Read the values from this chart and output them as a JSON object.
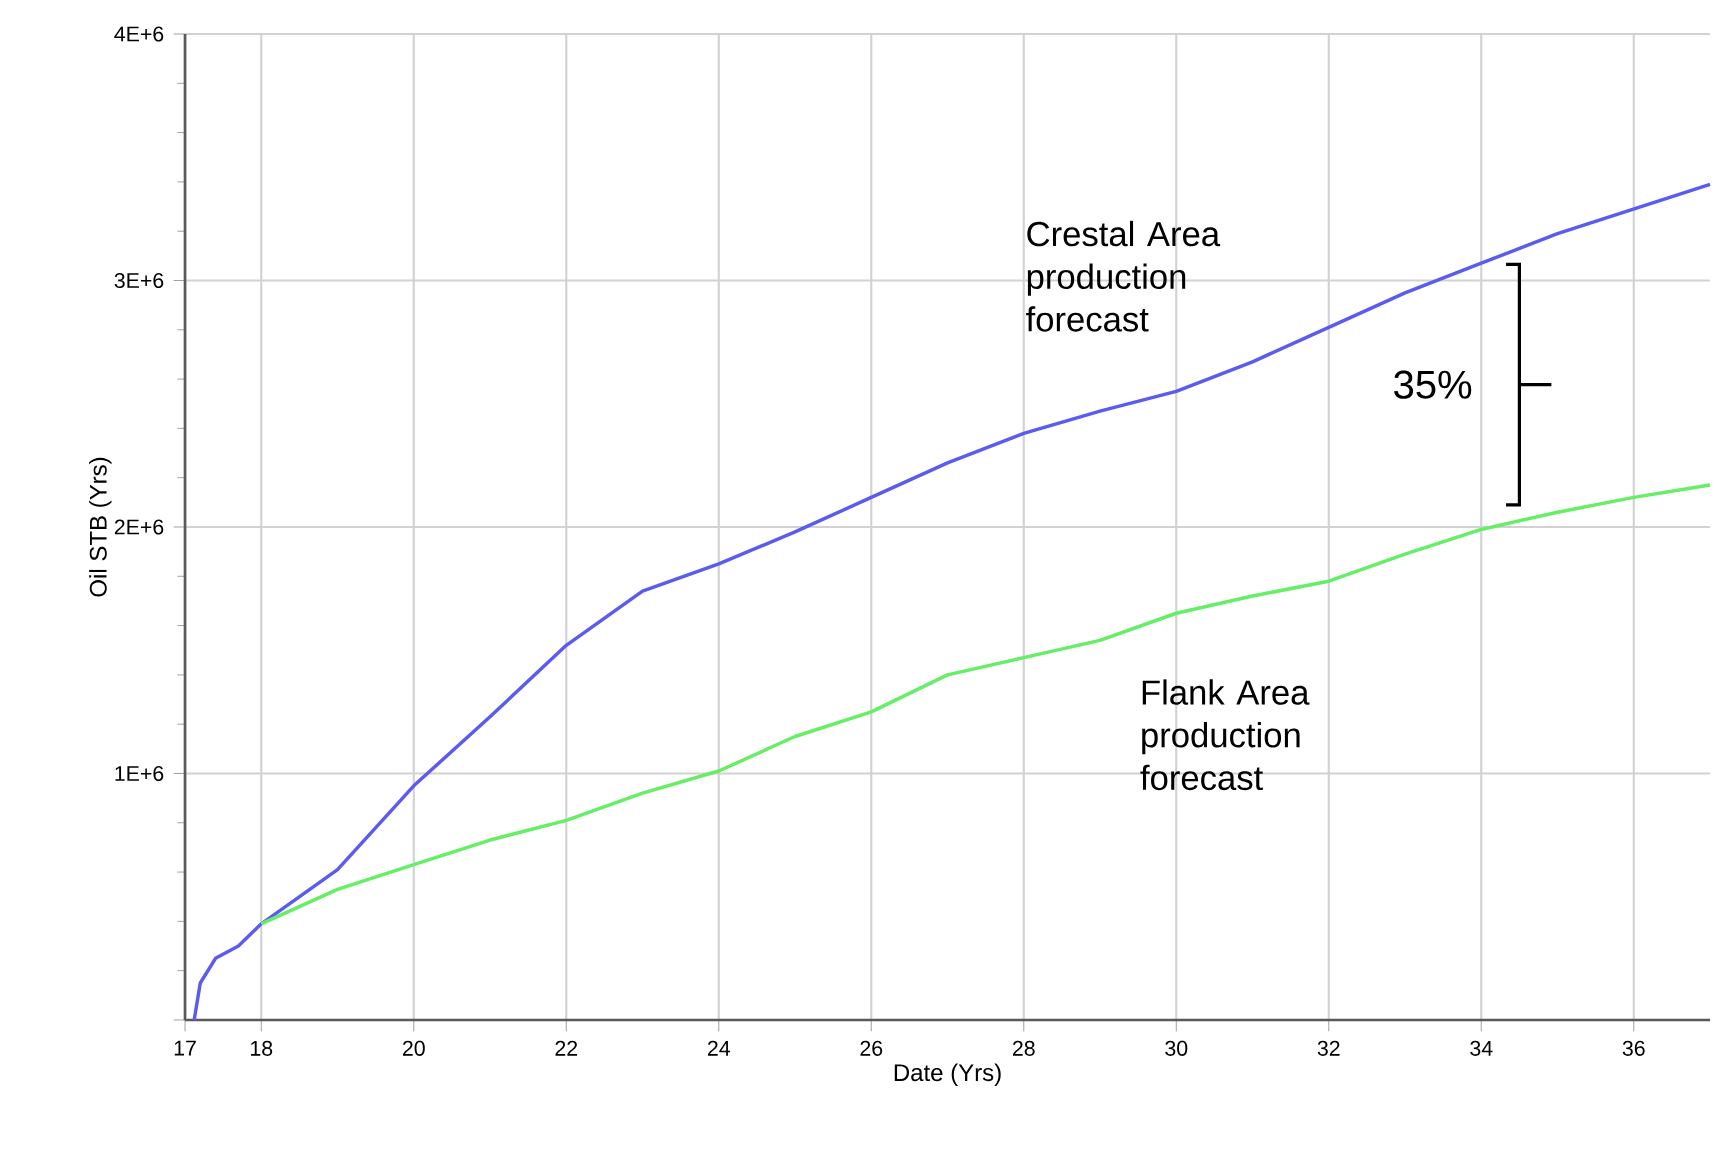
{
  "chart_data": {
    "type": "line",
    "xlabel": "Date (Yrs)",
    "ylabel": "Oil STB (Yrs)",
    "xlim": [
      17,
      37
    ],
    "ylim": [
      0,
      4000000
    ],
    "xticks": [
      17,
      18,
      20,
      22,
      24,
      26,
      28,
      30,
      32,
      34,
      36
    ],
    "yticks": [
      {
        "value": 0,
        "label": null
      },
      {
        "value": 1000000,
        "label": "1E+6"
      },
      {
        "value": 2000000,
        "label": "2E+6"
      },
      {
        "value": 3000000,
        "label": "3E+6"
      },
      {
        "value": 4000000,
        "label": "4E+6"
      }
    ],
    "grid": true,
    "marker": "none",
    "line_style": "solid",
    "series": [
      {
        "color": "#5b5bf0",
        "x": [
          17.12,
          17.2,
          17.4,
          17.7,
          18,
          19,
          20,
          21,
          22,
          23,
          24,
          25,
          26,
          27,
          28,
          29,
          30,
          31,
          32,
          33,
          34,
          35,
          36,
          37
        ],
        "values": [
          0,
          150000,
          250000,
          300000,
          390000,
          610000,
          950000,
          1230000,
          1520000,
          1740000,
          1850000,
          1980000,
          2120000,
          2260000,
          2380000,
          2470000,
          2550000,
          2670000,
          2810000,
          2950000,
          3070000,
          3190000,
          3290000,
          3390000
        ]
      },
      {
        "color": "#66ee66",
        "x": [
          18,
          19,
          20,
          21,
          22,
          23,
          24,
          25,
          26,
          27,
          28,
          29,
          30,
          31,
          32,
          33,
          34,
          35,
          36,
          37
        ],
        "values": [
          390000,
          530000,
          630000,
          730000,
          810000,
          920000,
          1010000,
          1150000,
          1250000,
          1400000,
          1470000,
          1540000,
          1650000,
          1720000,
          1780000,
          1890000,
          1990000,
          2060000,
          2120000,
          2170000
        ]
      }
    ],
    "annotations": [
      "Crestal Area production forecast",
      "Flank Area production forecast",
      "35%"
    ]
  }
}
